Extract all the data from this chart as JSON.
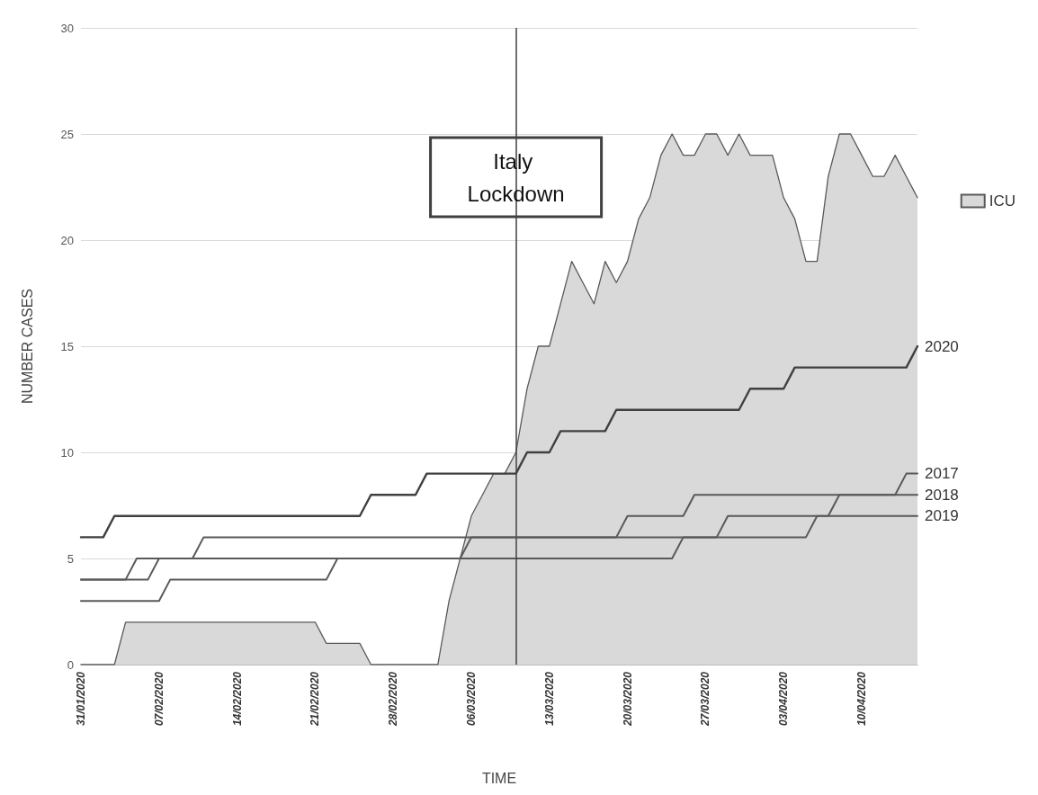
{
  "chart_data": {
    "type": "line",
    "xlabel": "TIME",
    "ylabel": "NUMBER CASES",
    "x": [
      "2020-01-31",
      "2020-02-01",
      "2020-02-02",
      "2020-02-03",
      "2020-02-04",
      "2020-02-05",
      "2020-02-06",
      "2020-02-07",
      "2020-02-08",
      "2020-02-09",
      "2020-02-10",
      "2020-02-11",
      "2020-02-12",
      "2020-02-13",
      "2020-02-14",
      "2020-02-15",
      "2020-02-16",
      "2020-02-17",
      "2020-02-18",
      "2020-02-19",
      "2020-02-20",
      "2020-02-21",
      "2020-02-22",
      "2020-02-23",
      "2020-02-24",
      "2020-02-25",
      "2020-02-26",
      "2020-02-27",
      "2020-02-28",
      "2020-02-29",
      "2020-03-01",
      "2020-03-02",
      "2020-03-03",
      "2020-03-04",
      "2020-03-05",
      "2020-03-06",
      "2020-03-07",
      "2020-03-08",
      "2020-03-09",
      "2020-03-10",
      "2020-03-11",
      "2020-03-12",
      "2020-03-13",
      "2020-03-14",
      "2020-03-15",
      "2020-03-16",
      "2020-03-17",
      "2020-03-18",
      "2020-03-19",
      "2020-03-20",
      "2020-03-21",
      "2020-03-22",
      "2020-03-23",
      "2020-03-24",
      "2020-03-25",
      "2020-03-26",
      "2020-03-27",
      "2020-03-28",
      "2020-03-29",
      "2020-03-30",
      "2020-03-31",
      "2020-04-01",
      "2020-04-02",
      "2020-04-03",
      "2020-04-04",
      "2020-04-05",
      "2020-04-06",
      "2020-04-07",
      "2020-04-08",
      "2020-04-09",
      "2020-04-10",
      "2020-04-11",
      "2020-04-12",
      "2020-04-13",
      "2020-04-14",
      "2020-04-15"
    ],
    "series": [
      {
        "name": "ICU",
        "type": "area",
        "color": "#d9d9d9",
        "values": [
          0,
          0,
          0,
          0,
          2,
          2,
          2,
          2,
          2,
          2,
          2,
          2,
          2,
          2,
          2,
          2,
          2,
          2,
          2,
          2,
          2,
          2,
          1,
          1,
          1,
          1,
          0,
          0,
          0,
          0,
          0,
          0,
          0,
          3,
          5,
          7,
          8,
          9,
          9,
          10,
          13,
          15,
          15,
          17,
          19,
          18,
          17,
          19,
          18,
          19,
          21,
          22,
          24,
          25,
          24,
          24,
          25,
          25,
          24,
          25,
          24,
          24,
          24,
          22,
          21,
          19,
          19,
          23,
          25,
          25,
          24,
          23,
          23,
          24,
          23,
          22
        ]
      },
      {
        "name": "2020",
        "color": "#404040",
        "values": [
          6,
          6,
          6,
          7,
          7,
          7,
          7,
          7,
          7,
          7,
          7,
          7,
          7,
          7,
          7,
          7,
          7,
          7,
          7,
          7,
          7,
          7,
          7,
          7,
          7,
          7,
          8,
          8,
          8,
          8,
          8,
          9,
          9,
          9,
          9,
          9,
          9,
          9,
          9,
          9,
          10,
          10,
          10,
          11,
          11,
          11,
          11,
          11,
          12,
          12,
          12,
          12,
          12,
          12,
          12,
          12,
          12,
          12,
          12,
          12,
          13,
          13,
          13,
          13,
          14,
          14,
          14,
          14,
          14,
          14,
          14,
          14,
          14,
          14,
          14,
          15
        ]
      },
      {
        "name": "2017",
        "color": "#595959",
        "values": [
          3,
          3,
          3,
          3,
          3,
          3,
          3,
          3,
          4,
          4,
          4,
          4,
          4,
          4,
          4,
          4,
          4,
          4,
          4,
          4,
          4,
          4,
          4,
          5,
          5,
          5,
          5,
          5,
          5,
          5,
          5,
          5,
          5,
          5,
          5,
          5,
          5,
          5,
          5,
          5,
          5,
          5,
          5,
          5,
          5,
          5,
          5,
          5,
          5,
          5,
          5,
          5,
          5,
          5,
          6,
          6,
          6,
          6,
          7,
          7,
          7,
          7,
          7,
          7,
          7,
          7,
          7,
          7,
          8,
          8,
          8,
          8,
          8,
          8,
          9,
          9
        ]
      },
      {
        "name": "2018",
        "color": "#595959",
        "values": [
          4,
          4,
          4,
          4,
          4,
          5,
          5,
          5,
          5,
          5,
          5,
          6,
          6,
          6,
          6,
          6,
          6,
          6,
          6,
          6,
          6,
          6,
          6,
          6,
          6,
          6,
          6,
          6,
          6,
          6,
          6,
          6,
          6,
          6,
          6,
          6,
          6,
          6,
          6,
          6,
          6,
          6,
          6,
          6,
          6,
          6,
          6,
          6,
          6,
          7,
          7,
          7,
          7,
          7,
          7,
          8,
          8,
          8,
          8,
          8,
          8,
          8,
          8,
          8,
          8,
          8,
          8,
          8,
          8,
          8,
          8,
          8,
          8,
          8,
          8,
          8
        ]
      },
      {
        "name": "2019",
        "color": "#595959",
        "values": [
          4,
          4,
          4,
          4,
          4,
          4,
          4,
          5,
          5,
          5,
          5,
          5,
          5,
          5,
          5,
          5,
          5,
          5,
          5,
          5,
          5,
          5,
          5,
          5,
          5,
          5,
          5,
          5,
          5,
          5,
          5,
          5,
          5,
          5,
          5,
          6,
          6,
          6,
          6,
          6,
          6,
          6,
          6,
          6,
          6,
          6,
          6,
          6,
          6,
          6,
          6,
          6,
          6,
          6,
          6,
          6,
          6,
          6,
          6,
          6,
          6,
          6,
          6,
          6,
          6,
          6,
          7,
          7,
          7,
          7,
          7,
          7,
          7,
          7,
          7,
          7
        ]
      }
    ],
    "xlim": [
      "2020-01-31",
      "2020-04-15"
    ],
    "xticks": [
      {
        "value": "2020-01-31",
        "label": "31/01/2020"
      },
      {
        "value": "2020-02-07",
        "label": "07/02/2020"
      },
      {
        "value": "2020-02-14",
        "label": "14/02/2020"
      },
      {
        "value": "2020-02-21",
        "label": "21/02/2020"
      },
      {
        "value": "2020-02-28",
        "label": "28/02/2020"
      },
      {
        "value": "2020-03-06",
        "label": "06/03/2020"
      },
      {
        "value": "2020-03-13",
        "label": "13/03/2020"
      },
      {
        "value": "2020-03-20",
        "label": "20/03/2020"
      },
      {
        "value": "2020-03-27",
        "label": "27/03/2020"
      },
      {
        "value": "2020-04-03",
        "label": "03/04/2020"
      },
      {
        "value": "2020-04-10",
        "label": "10/04/2020"
      }
    ],
    "ylim": [
      0,
      30
    ],
    "yticks": [
      0,
      5,
      10,
      15,
      20,
      25,
      30
    ],
    "ref_lines": [
      {
        "axis": "x",
        "value": "2020-03-10",
        "label": "Italy Lockdown",
        "color": "#404040"
      }
    ],
    "grid": "y",
    "legend": "right",
    "marker": "none",
    "line_style": "solid"
  }
}
